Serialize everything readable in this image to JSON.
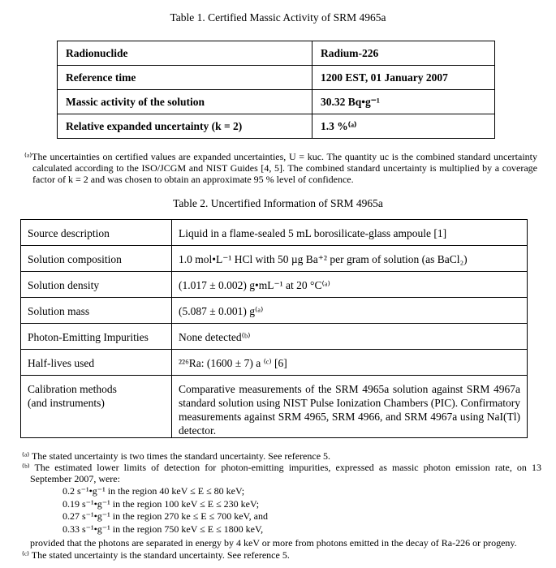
{
  "table1": {
    "title": "Table 1.  Certified Massic Activity of SRM 4965a",
    "rows": [
      [
        "Radionuclide",
        "Radium-226"
      ],
      [
        "Reference time",
        "1200 EST, 01 January 2007"
      ],
      [
        "Massic activity of the solution",
        "30.32 Bq•g⁻¹"
      ],
      [
        "Relative expanded uncertainty (k = 2)",
        "1.3 %⁽ᵃ⁾"
      ]
    ]
  },
  "footnote1": "⁽ᵃ⁾The uncertainties on certified values are expanded uncertainties, U = kuc.  The quantity uc is the combined standard uncertainty calculated according to the ISO/JCGM and NIST Guides [4, 5].  The combined standard uncertainty is multiplied by a coverage factor of k = 2 and was chosen to obtain an approximate 95 % level of confidence.",
  "table2": {
    "title": "Table 2.  Uncertified Information of SRM 4965a",
    "rows": [
      [
        "Source description",
        "Liquid in a flame-sealed 5 mL borosilicate-glass ampoule [1]"
      ],
      [
        "Solution composition",
        "1.0 mol•L⁻¹ HCl with 50 µg Ba⁺² per gram of solution (as BaCl₂)"
      ],
      [
        "Solution density",
        "(1.017 ± 0.002) g•mL⁻¹ at 20 °C⁽ᵃ⁾"
      ],
      [
        "Solution mass",
        "(5.087 ± 0.001) g⁽ᵃ⁾"
      ],
      [
        "Photon-Emitting Impurities",
        "None detected⁽ᵇ⁾"
      ],
      [
        "Half-lives used",
        "²²⁶Ra: (1600 ± 7) a ⁽ᶜ⁾ [6]"
      ],
      [
        "Calibration methods\n(and instruments)",
        "Comparative measurements of the SRM 4965a solution against SRM 4967a standard solution using NIST Pulse Ionization Chambers (PIC).  Confirmatory measurements against SRM 4965, SRM 4966, and SRM 4967a using NaI(Tl) detector."
      ]
    ]
  },
  "notes": {
    "a": "⁽ᵃ⁾ The stated uncertainty is two times the standard uncertainty.  See reference 5.",
    "b": {
      "intro": "⁽ᵇ⁾ The estimated lower limits of detection for photon-emitting impurities, expressed as massic photon emission rate, on 13 September 2007, were:",
      "items": [
        "0.2 s⁻¹•g⁻¹ in the region 40 keV ≤ E ≤ 80 keV;",
        "0.19 s⁻¹•g⁻¹ in the region 100 keV ≤ E ≤ 230 keV;",
        "0.27 s⁻¹•g⁻¹ in the region 270 ke ≤ E ≤ 700 keV, and",
        "0.33 s⁻¹•g⁻¹ in the region 750 keV ≤ E ≤ 1800 keV,"
      ],
      "outro": "provided that the photons are separated in energy by 4 keV or more from photons emitted in the decay of Ra-226 or progeny."
    },
    "c": "⁽ᶜ⁾ The stated uncertainty is the standard uncertainty.  See reference 5."
  }
}
